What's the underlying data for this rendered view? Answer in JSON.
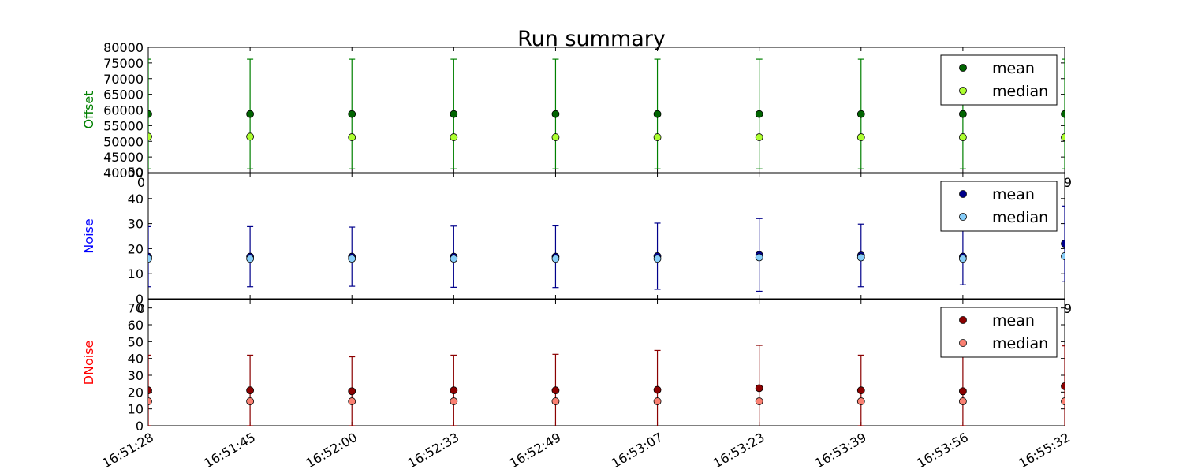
{
  "chart_data": {
    "type": "scatter",
    "title": "Run summary",
    "x": [
      "16:51:28",
      "16:51:45",
      "16:52:00",
      "16:52:33",
      "16:52:49",
      "16:53:07",
      "16:53:23",
      "16:53:39",
      "16:53:56",
      "16:55:32"
    ],
    "panels": [
      {
        "ylabel": "Offset",
        "ylabel_color": "#008000",
        "ylim": [
          40000,
          80000
        ],
        "yticks": [
          40000,
          45000,
          50000,
          55000,
          60000,
          65000,
          70000,
          75000,
          80000
        ],
        "extra_tick_labels": [
          "50",
          "0"
        ],
        "errbar_color": "#008000",
        "legend": "top-right",
        "series": [
          {
            "name": "mean",
            "color": "#006400",
            "values": [
              58700,
              58700,
              58700,
              58700,
              58700,
              58700,
              58700,
              58700,
              58700,
              58700
            ],
            "err": [
              17500,
              17500,
              17500,
              17500,
              17500,
              17500,
              17500,
              17500,
              17500,
              17500
            ]
          },
          {
            "name": "median",
            "color": "#adff2f",
            "values": [
              51500,
              51500,
              51300,
              51300,
              51300,
              51300,
              51300,
              51300,
              51300,
              51300
            ]
          }
        ]
      },
      {
        "ylabel": "Noise",
        "ylabel_color": "#0000ff",
        "ylim": [
          0,
          50
        ],
        "yticks": [
          0,
          10,
          20,
          30,
          40
        ],
        "extra_tick_labels": [
          "0",
          "9"
        ],
        "errbar_color": "#00008b",
        "legend": "top-right",
        "series": [
          {
            "name": "mean",
            "color": "#00008b",
            "values": [
              16.8,
              16.8,
              16.8,
              16.8,
              16.8,
              17.0,
              17.5,
              17.3,
              16.8,
              22.0
            ],
            "err": [
              12.0,
              12.0,
              11.8,
              12.2,
              12.3,
              13.2,
              14.5,
              12.5,
              11.2,
              15.0
            ]
          },
          {
            "name": "median",
            "color": "#87cefa",
            "values": [
              16.0,
              16.0,
              16.0,
              16.0,
              16.0,
              16.0,
              16.5,
              16.5,
              16.0,
              17.0
            ]
          }
        ]
      },
      {
        "ylabel": "DNoise",
        "ylabel_color": "#ff0000",
        "ylim": [
          0,
          75
        ],
        "yticks": [
          0,
          10,
          20,
          30,
          40,
          50,
          60,
          70
        ],
        "extra_tick_labels": [
          "9"
        ],
        "errbar_color": "#8b0000",
        "legend": "top-right",
        "series": [
          {
            "name": "mean",
            "color": "#8b0000",
            "values": [
              21.0,
              21.0,
              20.5,
              21.0,
              21.0,
              21.3,
              22.3,
              21.0,
              20.5,
              23.5
            ],
            "err": [
              21.0,
              21.0,
              20.5,
              21.0,
              21.5,
              23.5,
              25.5,
              21.0,
              20.5,
              24.0
            ]
          },
          {
            "name": "median",
            "color": "#fa8072",
            "values": [
              14.5,
              14.5,
              14.5,
              14.5,
              14.5,
              14.5,
              14.5,
              14.5,
              14.5,
              14.5
            ]
          }
        ]
      }
    ]
  }
}
